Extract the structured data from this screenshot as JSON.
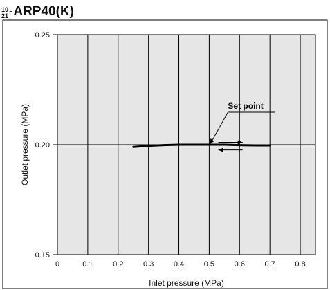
{
  "title": {
    "sup": "10",
    "sub": "21",
    "name": "ARP40(K)"
  },
  "chart_data": {
    "type": "line",
    "xlabel": "Inlet pressure (MPa)",
    "ylabel": "Outlet pressure  (MPa)",
    "xlim": [
      0,
      0.85
    ],
    "ylim": [
      0.15,
      0.25
    ],
    "x_ticks": [
      "0",
      "0.1",
      "0.2",
      "0.3",
      "0.4",
      "0.5",
      "0.6",
      "0.7",
      "0.8"
    ],
    "x_tick_values": [
      0,
      0.1,
      0.2,
      0.3,
      0.4,
      0.5,
      0.6,
      0.7,
      0.8
    ],
    "y_ticks": [
      "0.15",
      "0.20",
      "0.25"
    ],
    "y_tick_values": [
      0.15,
      0.2,
      0.25
    ],
    "grid": "vertical gridlines at each x tick; horizontal reference line at 0.20",
    "background_color": "#e6e6e6",
    "line_color": "#000000",
    "series": [
      {
        "x": [
          0.25,
          0.3,
          0.35,
          0.4,
          0.45,
          0.5,
          0.55,
          0.6,
          0.65,
          0.7
        ],
        "y": [
          0.199,
          0.1995,
          0.1998,
          0.2,
          0.2,
          0.2,
          0.2,
          0.1998,
          0.1997,
          0.1997
        ]
      }
    ],
    "annotations": [
      {
        "text": "Set point",
        "x": 0.5,
        "y": 0.2
      }
    ],
    "direction_arrows": [
      {
        "direction": "right",
        "from_x": 0.53,
        "to_x": 0.61,
        "y": 0.2011
      },
      {
        "direction": "left",
        "from_x": 0.61,
        "to_x": 0.53,
        "y": 0.1976
      }
    ]
  }
}
